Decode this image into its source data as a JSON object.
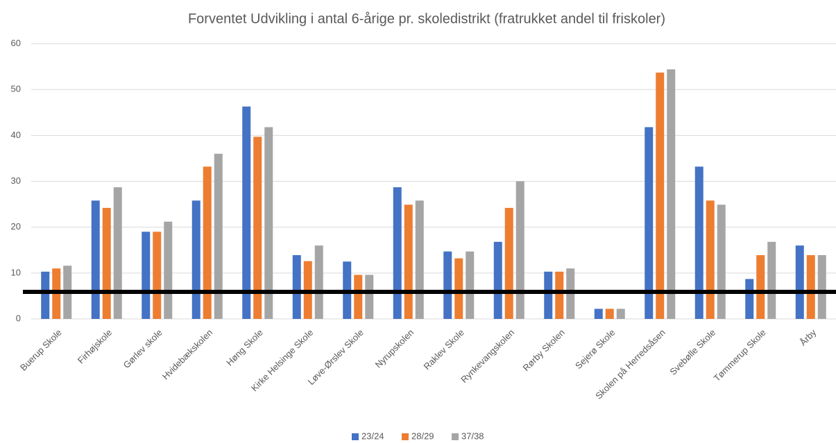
{
  "chart_data": {
    "type": "bar",
    "title": "Forventet Udvikling i antal 6-årige pr. skoledistrikt (fratrukket andel til friskoler)",
    "categories": [
      "Buerup Skole",
      "Firhøjskole",
      "Gørlev skole",
      "Hvidebækskolen",
      "Høng Skole",
      "Kirke Helsinge Skole",
      "Løve-Ørslev Skole",
      "Nyrupskolen",
      "Raklev Skole",
      "Rynkevangskolen",
      "Rørby Skolen",
      "Sejerø Skole",
      "Skolen på Herredsåsen",
      "Svebølle Skole",
      "Tømmerup Skole",
      "Årby"
    ],
    "series": [
      {
        "name": "23/24",
        "color": "#4472c4",
        "values": [
          10.3,
          25.8,
          19,
          25.8,
          46.3,
          13.9,
          12.5,
          28.7,
          14.7,
          16.8,
          10.3,
          2.2,
          41.8,
          33.2,
          8.7,
          16
        ]
      },
      {
        "name": "28/29",
        "color": "#ed7d31",
        "values": [
          11,
          24.2,
          19,
          33.2,
          39.7,
          12.6,
          9.6,
          24.9,
          13.2,
          24.2,
          10.3,
          2.2,
          53.7,
          25.8,
          13.9,
          13.9
        ]
      },
      {
        "name": "37/38",
        "color": "#a5a5a5",
        "values": [
          11.6,
          28.7,
          21.2,
          36,
          41.8,
          16,
          9.6,
          25.8,
          14.7,
          30,
          11,
          2.2,
          54.4,
          24.9,
          16.8,
          13.9
        ]
      }
    ],
    "ylim": [
      0,
      60
    ],
    "yticks": [
      0,
      10,
      20,
      30,
      40,
      50,
      60
    ],
    "grid": true,
    "reference_line": {
      "value": 5.9,
      "color": "#000000"
    },
    "legend": "bottom"
  }
}
